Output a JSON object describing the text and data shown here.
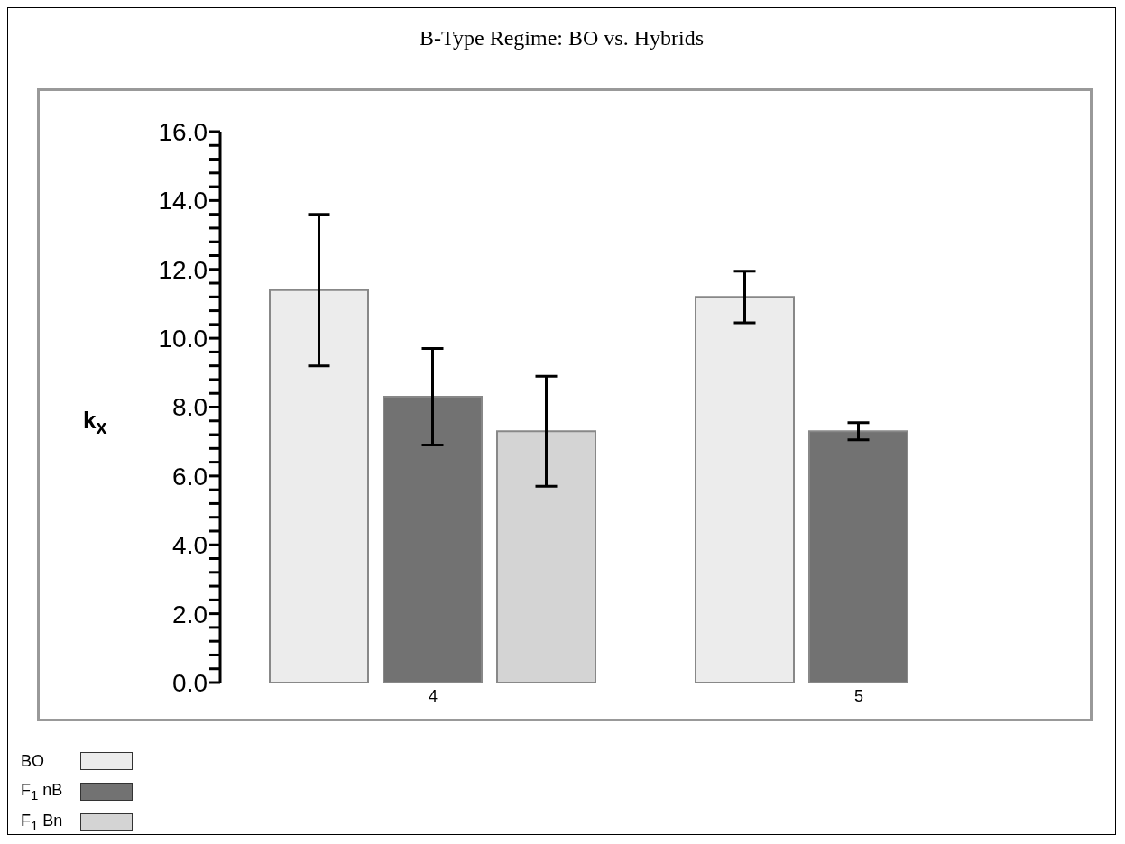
{
  "chart_data": {
    "type": "bar",
    "title": "B-Type Regime: BO vs. Hybrids",
    "ylabel": "k$_{x}$",
    "categories": [
      "4",
      "5"
    ],
    "series": [
      {
        "name": "BO",
        "color": "#ececec",
        "values": [
          11.4,
          11.2
        ],
        "errors": [
          2.2,
          0.75
        ]
      },
      {
        "name": "F$_{1}$ nB",
        "color": "#727272",
        "values": [
          8.3,
          7.3
        ],
        "errors": [
          1.4,
          0.25
        ]
      },
      {
        "name": "F$_{1}$ Bn",
        "color": "#d4d4d4",
        "values": [
          7.3,
          null
        ],
        "errors": [
          1.6,
          null
        ]
      }
    ],
    "ylim": [
      0,
      16
    ],
    "yticks": [
      {
        "value": 0,
        "label": "0.0"
      },
      {
        "value": 0.4,
        "label": null
      },
      {
        "value": 0.8,
        "label": null
      },
      {
        "value": 1.2,
        "label": null
      },
      {
        "value": 1.6,
        "label": null
      },
      {
        "value": 2,
        "label": "2.0"
      },
      {
        "value": 2.4,
        "label": null
      },
      {
        "value": 2.8,
        "label": null
      },
      {
        "value": 3.2,
        "label": null
      },
      {
        "value": 3.6,
        "label": null
      },
      {
        "value": 4,
        "label": "4.0"
      },
      {
        "value": 4.4,
        "label": null
      },
      {
        "value": 4.8,
        "label": null
      },
      {
        "value": 5.2,
        "label": null
      },
      {
        "value": 5.6,
        "label": null
      },
      {
        "value": 6,
        "label": "6.0"
      },
      {
        "value": 6.4,
        "label": null
      },
      {
        "value": 6.8,
        "label": null
      },
      {
        "value": 7.2,
        "label": null
      },
      {
        "value": 7.6,
        "label": null
      },
      {
        "value": 8,
        "label": "8.0"
      },
      {
        "value": 8.4,
        "label": null
      },
      {
        "value": 8.8,
        "label": null
      },
      {
        "value": 9.2,
        "label": null
      },
      {
        "value": 9.6,
        "label": null
      },
      {
        "value": 10,
        "label": "10.0"
      },
      {
        "value": 10.4,
        "label": null
      },
      {
        "value": 10.8,
        "label": null
      },
      {
        "value": 11.2,
        "label": null
      },
      {
        "value": 11.6,
        "label": null
      },
      {
        "value": 12,
        "label": "12.0"
      },
      {
        "value": 12.4,
        "label": null
      },
      {
        "value": 12.8,
        "label": null
      },
      {
        "value": 13.2,
        "label": null
      },
      {
        "value": 13.6,
        "label": null
      },
      {
        "value": 14,
        "label": "14.0"
      },
      {
        "value": 14.4,
        "label": null
      },
      {
        "value": 14.8,
        "label": null
      },
      {
        "value": 15.2,
        "label": null
      },
      {
        "value": 15.6,
        "label": null
      },
      {
        "value": 16,
        "label": "16.0"
      }
    ],
    "grid": false,
    "legend": "bottom left"
  }
}
